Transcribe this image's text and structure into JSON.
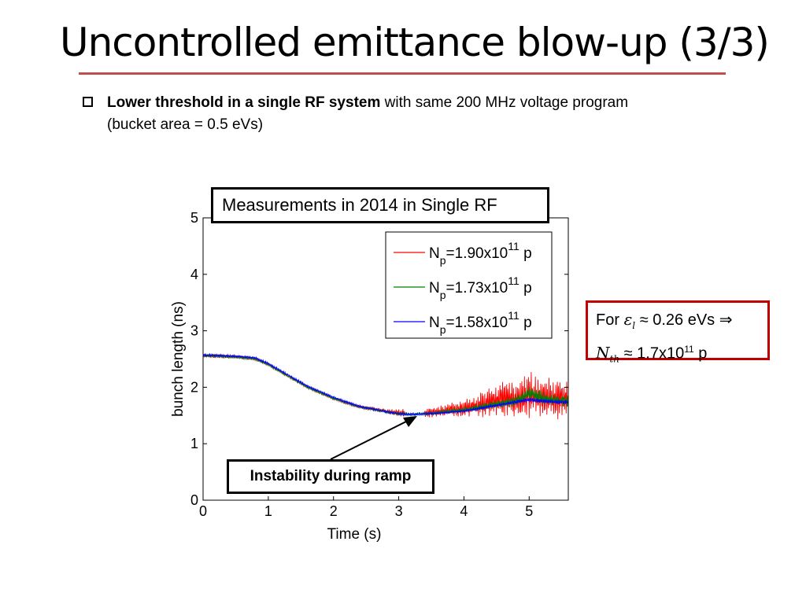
{
  "slide": {
    "title": "Uncontrolled emittance blow-up (3/3)",
    "bullet_bold": "Lower threshold in a single RF system",
    "bullet_rest": " with same 200 MHz voltage program (bucket area = 0.5 eVs)",
    "accent_color": "#c0504d"
  },
  "annotations": {
    "measurements": "Measurements in 2014 in Single RF",
    "instability": "Instability during ramp",
    "formula": {
      "line1_prefix": "For ",
      "eps_symbol": "ε",
      "eps_sub": "l",
      "line1_suffix": " ≈ 0.26 eVs ⇒",
      "n_symbol": "N",
      "n_sub": "th",
      "line2_mid": " ≈ 1.7x10",
      "line2_sup": "11",
      "line2_suffix": " p"
    }
  },
  "chart_data": {
    "type": "line",
    "xlabel": "Time (s)",
    "ylabel": "bunch length (ns)",
    "xlim": [
      0,
      5.6
    ],
    "ylim": [
      0,
      5
    ],
    "xticks": [
      0,
      1,
      2,
      3,
      4,
      5
    ],
    "yticks": [
      0,
      1,
      2,
      3,
      4,
      5
    ],
    "grid": false,
    "legend_position": "top-right",
    "series": [
      {
        "name": "Np=1.90x10^11 p",
        "label_base": "N",
        "label_sub": "p",
        "label_mid": "=1.90x10",
        "label_sup": "11",
        "label_end": " p",
        "color": "#ff0000",
        "x": [
          0,
          0.5,
          0.8,
          1.0,
          1.3,
          1.6,
          2.0,
          2.4,
          2.8,
          3.0,
          3.1,
          3.2,
          3.4,
          3.6,
          3.8,
          4.0,
          4.2,
          4.4,
          4.6,
          4.8,
          5.0,
          5.2,
          5.4,
          5.6
        ],
        "y": [
          2.56,
          2.54,
          2.5,
          2.4,
          2.2,
          2.0,
          1.8,
          1.65,
          1.58,
          1.55,
          1.55,
          null,
          1.55,
          1.57,
          1.6,
          1.62,
          1.68,
          1.75,
          1.8,
          1.78,
          1.85,
          1.8,
          1.8,
          1.78
        ],
        "spread": [
          0.04,
          0.03,
          0.03,
          0.02,
          0.02,
          0.02,
          0.02,
          0.03,
          0.04,
          0.06,
          0.08,
          0,
          0.08,
          0.1,
          0.12,
          0.14,
          0.2,
          0.25,
          0.3,
          0.35,
          0.4,
          0.35,
          0.35,
          0.3
        ]
      },
      {
        "name": "Np=1.73x10^11 p",
        "label_base": "N",
        "label_sub": "p",
        "label_mid": "=1.73x10",
        "label_sup": "11",
        "label_end": " p",
        "color": "#008000",
        "x": [
          0,
          0.5,
          0.8,
          1.0,
          1.3,
          1.6,
          2.0,
          2.4,
          2.8,
          3.0,
          3.2,
          3.4,
          3.6,
          3.8,
          4.0,
          4.2,
          4.4,
          4.6,
          4.8,
          5.0,
          5.2,
          5.4,
          5.6
        ],
        "y": [
          2.56,
          2.54,
          2.5,
          2.4,
          2.2,
          2.0,
          1.8,
          1.65,
          1.57,
          1.53,
          1.52,
          1.53,
          1.55,
          1.58,
          1.6,
          1.64,
          1.68,
          1.72,
          1.76,
          1.9,
          1.8,
          1.78,
          1.75
        ],
        "spread": [
          0.03,
          0.03,
          0.02,
          0.02,
          0.02,
          0.02,
          0.02,
          0.02,
          0.03,
          0.03,
          0.03,
          0.03,
          0.04,
          0.04,
          0.05,
          0.06,
          0.07,
          0.08,
          0.1,
          0.12,
          0.12,
          0.1,
          0.1
        ]
      },
      {
        "name": "Np=1.58x10^11 p",
        "label_base": "N",
        "label_sub": "p",
        "label_mid": "=1.58x10",
        "label_sup": "11",
        "label_end": " p",
        "color": "#0000ff",
        "x": [
          0,
          0.5,
          0.8,
          1.0,
          1.3,
          1.6,
          2.0,
          2.4,
          2.8,
          3.0,
          3.2,
          3.4,
          3.6,
          3.8,
          4.0,
          4.2,
          4.4,
          4.6,
          4.8,
          5.0,
          5.2,
          5.4,
          5.6
        ],
        "y": [
          2.57,
          2.55,
          2.52,
          2.42,
          2.22,
          2.02,
          1.82,
          1.66,
          1.57,
          1.53,
          1.52,
          1.53,
          1.54,
          1.56,
          1.58,
          1.62,
          1.66,
          1.7,
          1.74,
          1.78,
          1.76,
          1.74,
          1.73
        ],
        "spread": [
          0.02,
          0.02,
          0.02,
          0.02,
          0.02,
          0.02,
          0.02,
          0.02,
          0.02,
          0.02,
          0.02,
          0.02,
          0.02,
          0.02,
          0.02,
          0.03,
          0.03,
          0.03,
          0.04,
          0.04,
          0.04,
          0.04,
          0.04
        ]
      }
    ]
  }
}
